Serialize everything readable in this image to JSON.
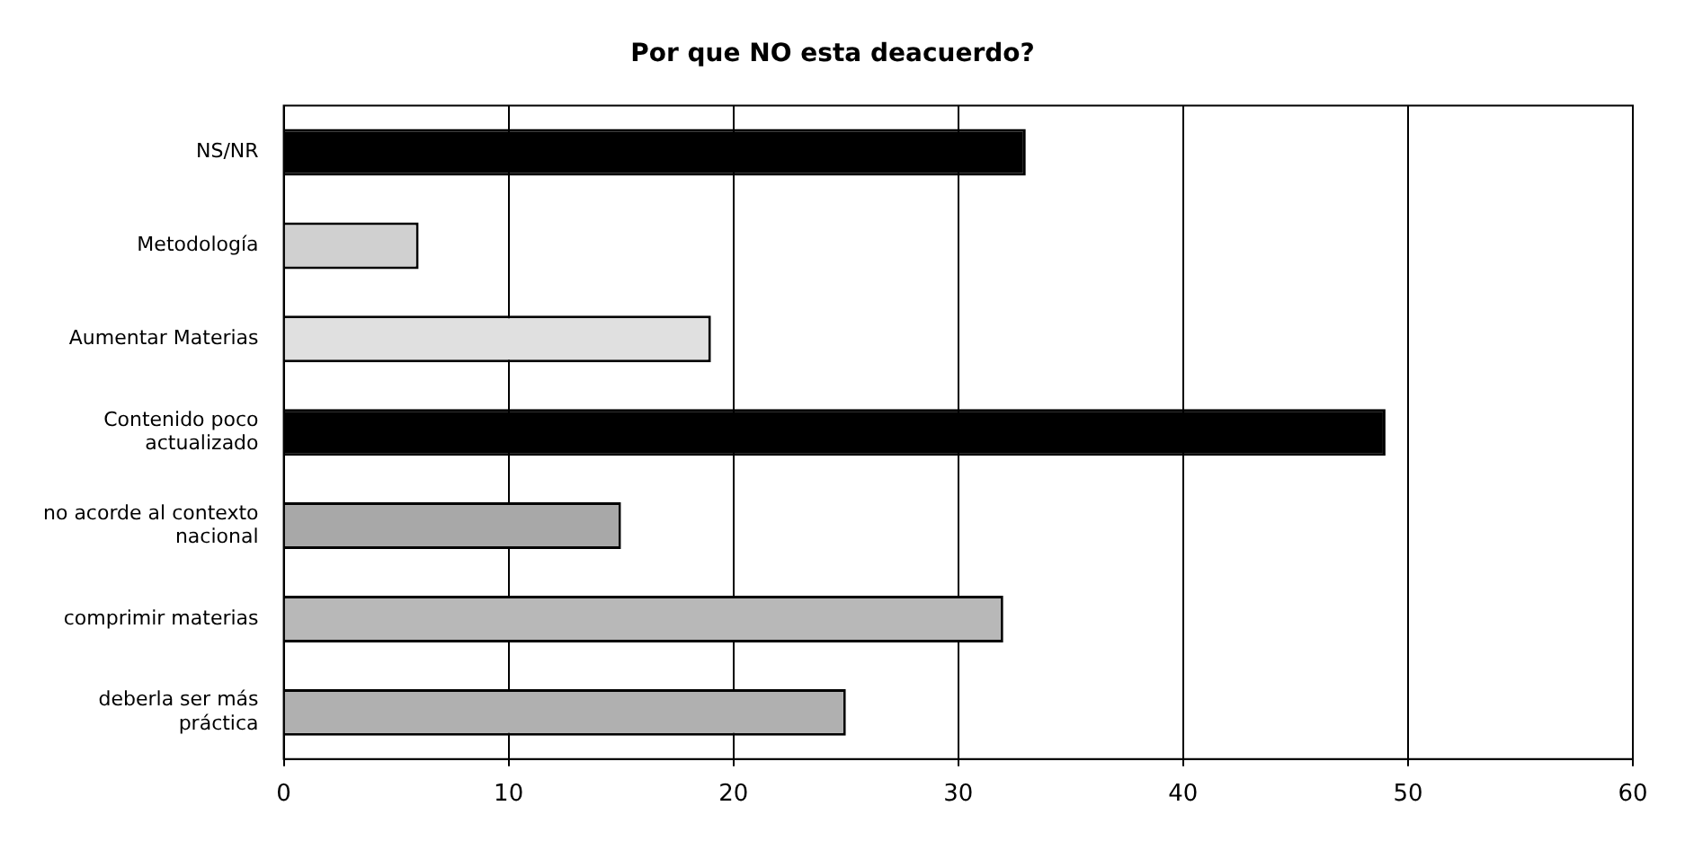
{
  "chart_data": {
    "type": "bar",
    "orientation": "horizontal",
    "title": "Por que NO esta deacuerdo?",
    "categories": [
      "NS/NR",
      "Metodología",
      "Aumentar Materias",
      "Contenido poco actualizado",
      "no acorde al contexto nacional",
      "comprimir materias",
      "deberla ser más práctica"
    ],
    "values": [
      33,
      6,
      19,
      49,
      15,
      32,
      25
    ],
    "colors": [
      "#000000",
      "#d0d0d0",
      "#e0e0e0",
      "#000000",
      "#a8a8a8",
      "#b8b8b8",
      "#b0b0b0"
    ],
    "xlim": [
      0,
      60
    ],
    "xticks": [
      0,
      10,
      20,
      30,
      40,
      50,
      60
    ],
    "grid": "x",
    "legend": false
  }
}
